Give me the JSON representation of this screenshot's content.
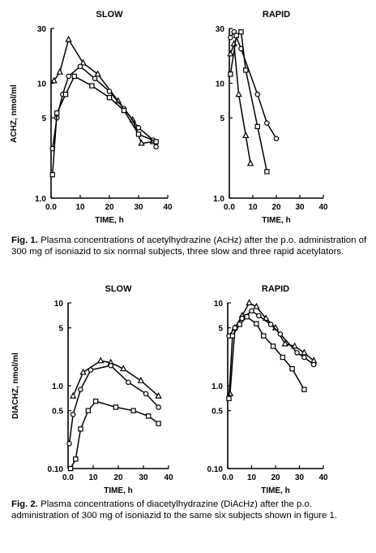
{
  "figure1": {
    "caption_label": "Fig. 1.",
    "caption_text": "Plasma concentrations of acetylhydrazine (AcHz) after the p.o. administration of 300 mg of isoniazid to six normal subjects, three slow and three rapid acetylators.",
    "ylabel": "ACHZ, nmol/ml",
    "xlabel": "TIME, h"
  },
  "figure2": {
    "caption_label": "Fig. 2.",
    "caption_text": "Plasma concentrations of diacetylhydrazine (DiAcHz) after the p.o. administration of 300 mg of isoniazid to the same six subjects shown in figure 1.",
    "ylabel": "DIACHZ, nmol/ml",
    "xlabel": "TIME, h"
  },
  "chart_data": [
    {
      "id": "fig1-slow",
      "type": "line",
      "title": "SLOW",
      "xlabel": "TIME, h",
      "ylabel": "ACHZ, nmol/ml",
      "y_scale": "log",
      "xlim": [
        0,
        40
      ],
      "ylim": [
        1.0,
        30
      ],
      "x_ticks": [
        "0.0",
        "10",
        "20",
        "30",
        "40"
      ],
      "y_ticks": [
        {
          "value": 30,
          "label": "30"
        },
        {
          "value": 10,
          "label": "10"
        },
        {
          "value": 5,
          "label": "5"
        },
        {
          "value": 1.0,
          "label": "1.0"
        }
      ],
      "series": [
        {
          "marker": "triangle",
          "points": [
            [
              1,
              10.5
            ],
            [
              3,
              12.5
            ],
            [
              6,
              24
            ],
            [
              11,
              15
            ],
            [
              16,
              12
            ],
            [
              23,
              7
            ],
            [
              28,
              4.8
            ],
            [
              31,
              3.0
            ],
            [
              35,
              3.1
            ]
          ]
        },
        {
          "marker": "circle",
          "points": [
            [
              0.5,
              2.7
            ],
            [
              2,
              5.0
            ],
            [
              4,
              8.0
            ],
            [
              6,
              11.5
            ],
            [
              10,
              14
            ],
            [
              15,
              11
            ],
            [
              20,
              8.5
            ],
            [
              25,
              6.0
            ],
            [
              30,
              4.1
            ],
            [
              35,
              3.2
            ],
            [
              36,
              2.8
            ]
          ]
        },
        {
          "marker": "square",
          "points": [
            [
              0.5,
              1.6
            ],
            [
              2,
              5.5
            ],
            [
              5,
              8.0
            ],
            [
              8,
              11.5
            ],
            [
              14,
              9.5
            ],
            [
              20,
              7.5
            ],
            [
              25,
              5.8
            ],
            [
              30,
              3.6
            ],
            [
              36,
              3.1
            ]
          ]
        }
      ]
    },
    {
      "id": "fig1-rapid",
      "type": "line",
      "title": "RAPID",
      "xlabel": "TIME, h",
      "ylabel": "",
      "y_scale": "log",
      "xlim": [
        0,
        40
      ],
      "ylim": [
        1.0,
        30
      ],
      "x_ticks": [
        "0.0",
        "10",
        "20",
        "30",
        "40"
      ],
      "y_ticks": [
        {
          "value": 30,
          "label": "30"
        },
        {
          "value": 10,
          "label": "10"
        },
        {
          "value": 5,
          "label": "5"
        },
        {
          "value": 1.0,
          "label": "1.0"
        }
      ],
      "series": [
        {
          "marker": "triangle",
          "points": [
            [
              0.5,
              18
            ],
            [
              2,
              22
            ],
            [
              4,
              8.0
            ],
            [
              7,
              3.5
            ],
            [
              9,
              2.0
            ]
          ]
        },
        {
          "marker": "circle",
          "points": [
            [
              0.5,
              25
            ],
            [
              2,
              28
            ],
            [
              5,
              20
            ],
            [
              12,
              8.0
            ],
            [
              16,
              4.5
            ],
            [
              20,
              3.3
            ]
          ]
        },
        {
          "marker": "square",
          "points": [
            [
              0.5,
              12
            ],
            [
              3,
              26
            ],
            [
              5,
              28
            ],
            [
              7,
              13
            ],
            [
              12,
              4.2
            ],
            [
              16,
              1.7
            ]
          ]
        }
      ]
    },
    {
      "id": "fig2-slow",
      "type": "line",
      "title": "SLOW",
      "xlabel": "TIME, h",
      "ylabel": "DIACHZ, nmol/ml",
      "y_scale": "log",
      "xlim": [
        0,
        40
      ],
      "ylim": [
        0.1,
        10
      ],
      "x_ticks": [
        "0.0",
        "10",
        "20",
        "30",
        "40"
      ],
      "y_ticks": [
        {
          "value": 10,
          "label": "10"
        },
        {
          "value": 5,
          "label": "5"
        },
        {
          "value": 1.0,
          "label": "1.0"
        },
        {
          "value": 0.5,
          "label": "0.5"
        },
        {
          "value": 0.1,
          "label": "0.10"
        }
      ],
      "series": [
        {
          "marker": "triangle",
          "points": [
            [
              2,
              0.75
            ],
            [
              6,
              1.45
            ],
            [
              13,
              2.0
            ],
            [
              17,
              1.9
            ],
            [
              22,
              1.6
            ],
            [
              29,
              1.15
            ],
            [
              36,
              0.75
            ]
          ]
        },
        {
          "marker": "circle",
          "points": [
            [
              0.5,
              0.2
            ],
            [
              2,
              0.45
            ],
            [
              5,
              0.9
            ],
            [
              9,
              1.55
            ],
            [
              17,
              1.75
            ],
            [
              24,
              1.1
            ],
            [
              31,
              0.8
            ],
            [
              36,
              0.55
            ]
          ]
        },
        {
          "marker": "square",
          "points": [
            [
              1,
              0.1
            ],
            [
              3,
              0.13
            ],
            [
              5,
              0.3
            ],
            [
              8,
              0.5
            ],
            [
              11,
              0.65
            ],
            [
              19,
              0.55
            ],
            [
              26,
              0.5
            ],
            [
              32,
              0.43
            ],
            [
              36,
              0.35
            ]
          ]
        }
      ]
    },
    {
      "id": "fig2-rapid",
      "type": "line",
      "title": "RAPID",
      "xlabel": "TIME, h",
      "ylabel": "",
      "y_scale": "log",
      "xlim": [
        0,
        40
      ],
      "ylim": [
        0.1,
        10
      ],
      "x_ticks": [
        "0.0",
        "10",
        "20",
        "30",
        "40"
      ],
      "y_ticks": [
        {
          "value": 10,
          "label": "10"
        },
        {
          "value": 5,
          "label": "5"
        },
        {
          "value": 1.0,
          "label": "1.0"
        },
        {
          "value": 0.5,
          "label": "0.5"
        },
        {
          "value": 0.1,
          "label": "0.10"
        }
      ],
      "series": [
        {
          "marker": "triangle",
          "points": [
            [
              1,
              0.8
            ],
            [
              3,
              5.0
            ],
            [
              6,
              7.0
            ],
            [
              9,
              10
            ],
            [
              12,
              9.0
            ],
            [
              16,
              6.5
            ],
            [
              20,
              5.0
            ],
            [
              24,
              3.2
            ],
            [
              28,
              3.0
            ],
            [
              32,
              2.5
            ],
            [
              36,
              2.0
            ]
          ]
        },
        {
          "marker": "circle",
          "points": [
            [
              0.5,
              4.0
            ],
            [
              3,
              5.0
            ],
            [
              6,
              6.5
            ],
            [
              10,
              8.0
            ],
            [
              13,
              7.0
            ],
            [
              18,
              5.5
            ],
            [
              22,
              4.2
            ],
            [
              29,
              2.5
            ],
            [
              32,
              2.2
            ],
            [
              36,
              1.8
            ]
          ]
        },
        {
          "marker": "square",
          "points": [
            [
              0.5,
              0.7
            ],
            [
              2,
              4.0
            ],
            [
              5,
              5.5
            ],
            [
              8,
              6.8
            ],
            [
              12,
              5.6
            ],
            [
              15,
              4.0
            ],
            [
              19,
              3.0
            ],
            [
              23,
              2.2
            ],
            [
              27,
              1.6
            ],
            [
              32,
              0.9
            ]
          ]
        }
      ]
    }
  ]
}
